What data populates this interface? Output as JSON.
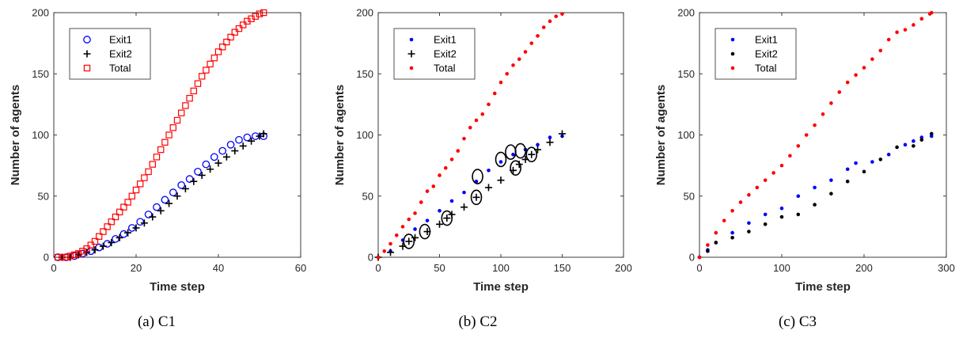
{
  "chart_data": [
    {
      "type": "scatter",
      "caption": "(a) C1",
      "xlabel": "Time step",
      "ylabel": "Number of agents",
      "xlim": [
        0,
        60
      ],
      "ylim": [
        0,
        200
      ],
      "xticks": [
        "0",
        "20",
        "40",
        "60"
      ],
      "yticks": [
        "0",
        "50",
        "100",
        "150",
        "200"
      ],
      "legend": {
        "placement": "top-left",
        "entries": [
          "Exit1",
          "Exit2",
          "Total"
        ]
      },
      "grid": false,
      "series": [
        {
          "name": "Exit1",
          "marker": "circle",
          "color": "#0000ff",
          "points": [
            [
              1,
              0
            ],
            [
              3,
              0
            ],
            [
              5,
              1
            ],
            [
              7,
              3
            ],
            [
              9,
              5
            ],
            [
              11,
              8
            ],
            [
              13,
              11
            ],
            [
              15,
              15
            ],
            [
              17,
              19
            ],
            [
              19,
              24
            ],
            [
              21,
              29
            ],
            [
              23,
              35
            ],
            [
              25,
              41
            ],
            [
              27,
              47
            ],
            [
              29,
              53
            ],
            [
              31,
              59
            ],
            [
              33,
              64
            ],
            [
              35,
              70
            ],
            [
              37,
              76
            ],
            [
              39,
              82
            ],
            [
              41,
              87
            ],
            [
              43,
              92
            ],
            [
              45,
              96
            ],
            [
              47,
              98
            ],
            [
              49,
              99
            ],
            [
              51,
              99
            ]
          ]
        },
        {
          "name": "Exit2",
          "marker": "plus",
          "color": "#000000",
          "points": [
            [
              2,
              0
            ],
            [
              4,
              0
            ],
            [
              6,
              2
            ],
            [
              8,
              4
            ],
            [
              10,
              6
            ],
            [
              12,
              9
            ],
            [
              14,
              12
            ],
            [
              16,
              16
            ],
            [
              18,
              20
            ],
            [
              20,
              24
            ],
            [
              22,
              28
            ],
            [
              24,
              33
            ],
            [
              26,
              38
            ],
            [
              28,
              44
            ],
            [
              30,
              50
            ],
            [
              32,
              56
            ],
            [
              34,
              62
            ],
            [
              36,
              67
            ],
            [
              38,
              72
            ],
            [
              40,
              77
            ],
            [
              42,
              82
            ],
            [
              44,
              87
            ],
            [
              46,
              91
            ],
            [
              48,
              95
            ],
            [
              50,
              99
            ],
            [
              51,
              101
            ]
          ]
        },
        {
          "name": "Total",
          "marker": "square",
          "color": "#ff0000",
          "points": [
            [
              1,
              0
            ],
            [
              2,
              0
            ],
            [
              3,
              0
            ],
            [
              4,
              1
            ],
            [
              5,
              2
            ],
            [
              6,
              3
            ],
            [
              7,
              5
            ],
            [
              8,
              7
            ],
            [
              9,
              10
            ],
            [
              10,
              13
            ],
            [
              11,
              17
            ],
            [
              12,
              21
            ],
            [
              13,
              25
            ],
            [
              14,
              29
            ],
            [
              15,
              33
            ],
            [
              16,
              37
            ],
            [
              17,
              41
            ],
            [
              18,
              45
            ],
            [
              19,
              50
            ],
            [
              20,
              55
            ],
            [
              21,
              60
            ],
            [
              22,
              65
            ],
            [
              23,
              70
            ],
            [
              24,
              76
            ],
            [
              25,
              82
            ],
            [
              26,
              88
            ],
            [
              27,
              94
            ],
            [
              28,
              100
            ],
            [
              29,
              106
            ],
            [
              30,
              112
            ],
            [
              31,
              118
            ],
            [
              32,
              124
            ],
            [
              33,
              130
            ],
            [
              34,
              136
            ],
            [
              35,
              142
            ],
            [
              36,
              148
            ],
            [
              37,
              153
            ],
            [
              38,
              158
            ],
            [
              39,
              163
            ],
            [
              40,
              168
            ],
            [
              41,
              172
            ],
            [
              42,
              176
            ],
            [
              43,
              180
            ],
            [
              44,
              184
            ],
            [
              45,
              187
            ],
            [
              46,
              190
            ],
            [
              47,
              193
            ],
            [
              48,
              195
            ],
            [
              49,
              197
            ],
            [
              50,
              199
            ],
            [
              51,
              200
            ]
          ]
        }
      ]
    },
    {
      "type": "scatter",
      "caption": "(b) C2",
      "xlabel": "Time step",
      "ylabel": "Number of agents",
      "xlim": [
        0,
        200
      ],
      "ylim": [
        0,
        200
      ],
      "xticks": [
        "0",
        "50",
        "100",
        "150",
        "200"
      ],
      "yticks": [
        "0",
        "50",
        "100",
        "150",
        "200"
      ],
      "legend": {
        "placement": "top-left",
        "entries": [
          "Exit1",
          "Exit2",
          "Total"
        ]
      },
      "grid": false,
      "series": [
        {
          "name": "Exit1",
          "marker": "dot",
          "color": "#0000ff",
          "points": [
            [
              0,
              0
            ],
            [
              10,
              5
            ],
            [
              20,
              14
            ],
            [
              30,
              23
            ],
            [
              40,
              30
            ],
            [
              50,
              38
            ],
            [
              60,
              46
            ],
            [
              70,
              53
            ],
            [
              80,
              62
            ],
            [
              90,
              71
            ],
            [
              100,
              78
            ],
            [
              110,
              84
            ],
            [
              120,
              88
            ],
            [
              130,
              92
            ],
            [
              140,
              98
            ],
            [
              150,
              99
            ]
          ]
        },
        {
          "name": "Exit2",
          "marker": "plus",
          "color": "#000000",
          "points": [
            [
              0,
              0
            ],
            [
              10,
              4
            ],
            [
              20,
              9
            ],
            [
              25,
              13
            ],
            [
              30,
              16
            ],
            [
              40,
              21
            ],
            [
              50,
              27
            ],
            [
              56,
              32
            ],
            [
              60,
              35
            ],
            [
              70,
              41
            ],
            [
              80,
              49
            ],
            [
              90,
              57
            ],
            [
              100,
              63
            ],
            [
              110,
              71
            ],
            [
              115,
              76
            ],
            [
              120,
              80
            ],
            [
              125,
              84
            ],
            [
              130,
              88
            ],
            [
              140,
              94
            ],
            [
              150,
              101
            ]
          ]
        },
        {
          "name": "Total",
          "marker": "dot",
          "color": "#ff0000",
          "points": [
            [
              0,
              0
            ],
            [
              5,
              5
            ],
            [
              10,
              11
            ],
            [
              15,
              18
            ],
            [
              20,
              25
            ],
            [
              25,
              31
            ],
            [
              30,
              36
            ],
            [
              35,
              45
            ],
            [
              40,
              54
            ],
            [
              45,
              58
            ],
            [
              50,
              67
            ],
            [
              55,
              73
            ],
            [
              60,
              80
            ],
            [
              65,
              87
            ],
            [
              70,
              97
            ],
            [
              75,
              106
            ],
            [
              80,
              112
            ],
            [
              85,
              117
            ],
            [
              90,
              125
            ],
            [
              95,
              134
            ],
            [
              100,
              143
            ],
            [
              105,
              150
            ],
            [
              110,
              157
            ],
            [
              115,
              162
            ],
            [
              120,
              168
            ],
            [
              125,
              175
            ],
            [
              130,
              181
            ],
            [
              135,
              188
            ],
            [
              140,
              193
            ],
            [
              145,
              197
            ],
            [
              150,
              199
            ]
          ]
        }
      ],
      "annotations": {
        "type": "ellipse",
        "points": [
          [
            25,
            13
          ],
          [
            38,
            21
          ],
          [
            56,
            32
          ],
          [
            80,
            49
          ],
          [
            81,
            66
          ],
          [
            100,
            80
          ],
          [
            108,
            86
          ],
          [
            112,
            73
          ],
          [
            116,
            87
          ],
          [
            125,
            84
          ]
        ]
      }
    },
    {
      "type": "scatter",
      "caption": "(c) C3",
      "xlabel": "Time step",
      "ylabel": "Number of agents",
      "xlim": [
        0,
        300
      ],
      "ylim": [
        0,
        200
      ],
      "xticks": [
        "0",
        "100",
        "200",
        "300"
      ],
      "yticks": [
        "0",
        "50",
        "100",
        "150",
        "200"
      ],
      "legend": {
        "placement": "top-left",
        "entries": [
          "Exit1",
          "Exit2",
          "Total"
        ]
      },
      "grid": false,
      "series": [
        {
          "name": "Exit1",
          "marker": "dot",
          "color": "#0000ff",
          "points": [
            [
              0,
              0
            ],
            [
              10,
              6
            ],
            [
              20,
              12
            ],
            [
              40,
              20
            ],
            [
              60,
              28
            ],
            [
              80,
              35
            ],
            [
              100,
              40
            ],
            [
              120,
              50
            ],
            [
              140,
              57
            ],
            [
              160,
              63
            ],
            [
              180,
              72
            ],
            [
              190,
              77
            ],
            [
              210,
              78
            ],
            [
              230,
              84
            ],
            [
              250,
              92
            ],
            [
              260,
              95
            ],
            [
              270,
              98
            ],
            [
              282,
              99
            ]
          ]
        },
        {
          "name": "Exit2",
          "marker": "dot",
          "color": "#000000",
          "points": [
            [
              0,
              0
            ],
            [
              10,
              5
            ],
            [
              20,
              12
            ],
            [
              40,
              16
            ],
            [
              60,
              21
            ],
            [
              80,
              27
            ],
            [
              100,
              33
            ],
            [
              120,
              35
            ],
            [
              140,
              43
            ],
            [
              160,
              52
            ],
            [
              180,
              62
            ],
            [
              200,
              70
            ],
            [
              220,
              80
            ],
            [
              240,
              90
            ],
            [
              260,
              91
            ],
            [
              270,
              96
            ],
            [
              282,
              101
            ]
          ]
        },
        {
          "name": "Total",
          "marker": "dot",
          "color": "#ff0000",
          "points": [
            [
              0,
              0
            ],
            [
              10,
              10
            ],
            [
              20,
              20
            ],
            [
              30,
              30
            ],
            [
              40,
              38
            ],
            [
              50,
              45
            ],
            [
              60,
              51
            ],
            [
              70,
              57
            ],
            [
              80,
              63
            ],
            [
              90,
              69
            ],
            [
              100,
              75
            ],
            [
              110,
              83
            ],
            [
              120,
              91
            ],
            [
              130,
              100
            ],
            [
              140,
              108
            ],
            [
              150,
              117
            ],
            [
              160,
              126
            ],
            [
              170,
              135
            ],
            [
              180,
              143
            ],
            [
              190,
              149
            ],
            [
              200,
              155
            ],
            [
              210,
              162
            ],
            [
              220,
              169
            ],
            [
              230,
              178
            ],
            [
              240,
              184
            ],
            [
              250,
              186
            ],
            [
              260,
              190
            ],
            [
              270,
              195
            ],
            [
              280,
              199
            ],
            [
              282,
              200
            ]
          ]
        }
      ]
    }
  ]
}
